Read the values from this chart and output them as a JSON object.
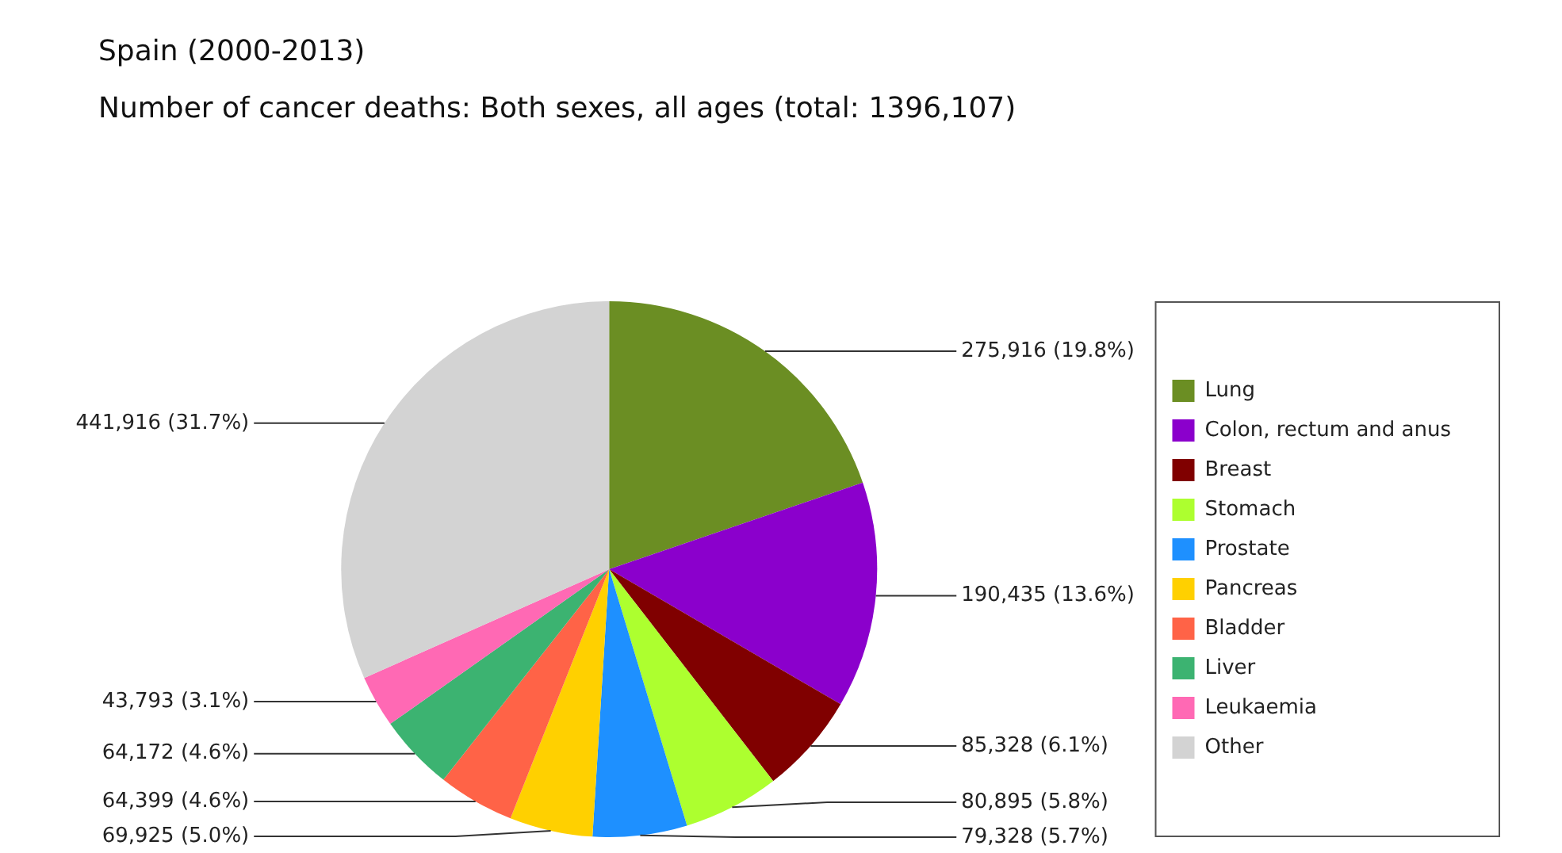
{
  "chart_data": {
    "type": "pie",
    "title": "Spain (2000-2013)",
    "subtitle": "Number of cancer deaths: Both sexes, all ages (total: 1396,107)",
    "categories": [
      "Lung",
      "Colon, rectum and anus",
      "Breast",
      "Stomach",
      "Prostate",
      "Pancreas",
      "Bladder",
      "Liver",
      "Leukaemia",
      "Other"
    ],
    "values": [
      275916,
      190435,
      85328,
      80895,
      79328,
      69925,
      64399,
      64172,
      43793,
      441916
    ],
    "colors": [
      "#6b8e23",
      "#8b00cc",
      "#800000",
      "#adff2f",
      "#1e90ff",
      "#ffd000",
      "#ff6347",
      "#3cb371",
      "#ff69b4",
      "#d3d3d3"
    ],
    "value_labels": [
      "275,916 (19.8%)",
      "190,435 (13.6%)",
      "85,328 (6.1%)",
      "80,895 (5.8%)",
      "79,328 (5.7%)",
      "69,925 (5.0%)",
      "64,399 (4.6%)",
      "64,172 (4.6%)",
      "43,793 (3.1%)",
      "441,916 (31.7%)"
    ],
    "legend": "right"
  }
}
